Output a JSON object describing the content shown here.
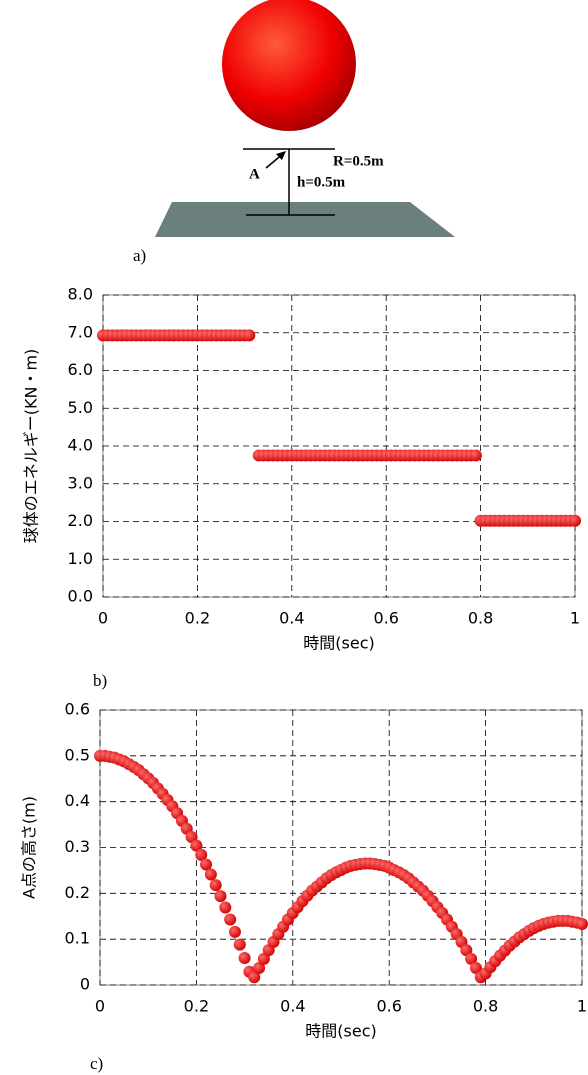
{
  "diagram": {
    "radius_label": "R=0.5m",
    "point_label": "A",
    "height_label": "h=0.5m",
    "caption": "a)"
  },
  "chart_data": [
    {
      "type": "scatter",
      "caption": "b)",
      "xlabel": "時間(sec)",
      "ylabel": "球体のエネルギー(KN・m)",
      "color": "#ff0000",
      "grid": true,
      "xlim": [
        0,
        1
      ],
      "xticks": [
        0,
        0.2,
        0.4,
        0.6,
        0.8,
        1
      ],
      "ylim": [
        0,
        8
      ],
      "yticks": [
        {
          "value": 0,
          "label": "0.0"
        },
        {
          "value": 1,
          "label": "1.0"
        },
        {
          "value": 2,
          "label": "2.0"
        },
        {
          "value": 3,
          "label": "3.0"
        },
        {
          "value": 4,
          "label": "4.0"
        },
        {
          "value": 5,
          "label": "5.0"
        },
        {
          "value": 6,
          "label": "6.0"
        },
        {
          "value": 7,
          "label": "7.0"
        },
        {
          "value": 8,
          "label": "8.0"
        }
      ],
      "x": [
        0,
        0.01,
        0.02,
        0.03,
        0.04,
        0.05,
        0.06,
        0.07,
        0.08,
        0.09,
        0.1,
        0.11,
        0.12,
        0.13,
        0.14,
        0.15,
        0.16,
        0.17,
        0.18,
        0.19,
        0.2,
        0.21,
        0.22,
        0.23,
        0.24,
        0.25,
        0.26,
        0.27,
        0.28,
        0.29,
        0.3,
        0.31,
        0.33,
        0.34,
        0.35,
        0.36,
        0.37,
        0.38,
        0.39,
        0.4,
        0.41,
        0.42,
        0.43,
        0.44,
        0.45,
        0.46,
        0.47,
        0.48,
        0.49,
        0.5,
        0.51,
        0.52,
        0.53,
        0.54,
        0.55,
        0.56,
        0.57,
        0.58,
        0.59,
        0.6,
        0.61,
        0.62,
        0.63,
        0.64,
        0.65,
        0.66,
        0.67,
        0.68,
        0.69,
        0.7,
        0.71,
        0.72,
        0.73,
        0.74,
        0.75,
        0.76,
        0.77,
        0.78,
        0.79,
        0.8,
        0.81,
        0.82,
        0.83,
        0.84,
        0.85,
        0.86,
        0.87,
        0.88,
        0.89,
        0.9,
        0.91,
        0.92,
        0.93,
        0.94,
        0.95,
        0.96,
        0.97,
        0.98,
        0.99,
        1
      ],
      "values": [
        6.93,
        6.93,
        6.93,
        6.93,
        6.93,
        6.93,
        6.93,
        6.93,
        6.93,
        6.93,
        6.93,
        6.93,
        6.93,
        6.93,
        6.93,
        6.93,
        6.93,
        6.93,
        6.93,
        6.93,
        6.93,
        6.93,
        6.93,
        6.93,
        6.93,
        6.93,
        6.93,
        6.93,
        6.93,
        6.93,
        6.93,
        6.93,
        3.75,
        3.75,
        3.75,
        3.75,
        3.75,
        3.75,
        3.75,
        3.75,
        3.75,
        3.75,
        3.75,
        3.75,
        3.75,
        3.75,
        3.75,
        3.75,
        3.75,
        3.75,
        3.75,
        3.75,
        3.75,
        3.75,
        3.75,
        3.75,
        3.75,
        3.75,
        3.75,
        3.75,
        3.75,
        3.75,
        3.75,
        3.75,
        3.75,
        3.75,
        3.75,
        3.75,
        3.75,
        3.75,
        3.75,
        3.75,
        3.75,
        3.75,
        3.75,
        3.75,
        3.75,
        3.75,
        3.75,
        2.02,
        2.02,
        2.02,
        2.02,
        2.02,
        2.02,
        2.02,
        2.02,
        2.02,
        2.02,
        2.02,
        2.02,
        2.02,
        2.02,
        2.02,
        2.02,
        2.02,
        2.02,
        2.02,
        2.02,
        2.02
      ]
    },
    {
      "type": "scatter",
      "caption": "c)",
      "xlabel": "時間(sec)",
      "ylabel": "A点の高さ(m)",
      "color": "#ff0000",
      "grid": true,
      "xlim": [
        0,
        1
      ],
      "xticks": [
        0,
        0.2,
        0.4,
        0.6,
        0.8,
        1
      ],
      "ylim": [
        0,
        0.6
      ],
      "yticks": [
        0,
        0.1,
        0.2,
        0.3,
        0.4,
        0.5,
        0.6
      ],
      "x": [
        0,
        0.01,
        0.02,
        0.03,
        0.04,
        0.05,
        0.06,
        0.07,
        0.08,
        0.09,
        0.1,
        0.11,
        0.12,
        0.13,
        0.14,
        0.15,
        0.16,
        0.17,
        0.18,
        0.19,
        0.2,
        0.21,
        0.22,
        0.23,
        0.24,
        0.25,
        0.26,
        0.27,
        0.28,
        0.29,
        0.3,
        0.31,
        0.32,
        0.33,
        0.34,
        0.35,
        0.36,
        0.37,
        0.38,
        0.39,
        0.4,
        0.41,
        0.42,
        0.43,
        0.44,
        0.45,
        0.46,
        0.47,
        0.48,
        0.49,
        0.5,
        0.51,
        0.52,
        0.53,
        0.54,
        0.55,
        0.56,
        0.57,
        0.58,
        0.59,
        0.6,
        0.61,
        0.62,
        0.63,
        0.64,
        0.65,
        0.66,
        0.67,
        0.68,
        0.69,
        0.7,
        0.71,
        0.72,
        0.73,
        0.74,
        0.75,
        0.76,
        0.77,
        0.78,
        0.79,
        0.8,
        0.81,
        0.82,
        0.83,
        0.84,
        0.85,
        0.86,
        0.87,
        0.88,
        0.89,
        0.9,
        0.91,
        0.92,
        0.93,
        0.94,
        0.95,
        0.96,
        0.97,
        0.98,
        0.99,
        1
      ],
      "values": [
        0.5,
        0.5,
        0.498,
        0.496,
        0.492,
        0.488,
        0.482,
        0.476,
        0.469,
        0.46,
        0.451,
        0.441,
        0.429,
        0.417,
        0.404,
        0.39,
        0.375,
        0.358,
        0.341,
        0.323,
        0.304,
        0.284,
        0.263,
        0.241,
        0.218,
        0.194,
        0.169,
        0.143,
        0.116,
        0.088,
        0.059,
        0.029,
        0.017,
        0.037,
        0.057,
        0.076,
        0.094,
        0.111,
        0.127,
        0.143,
        0.157,
        0.17,
        0.183,
        0.195,
        0.206,
        0.215,
        0.224,
        0.233,
        0.24,
        0.246,
        0.251,
        0.256,
        0.26,
        0.262,
        0.264,
        0.265,
        0.265,
        0.264,
        0.262,
        0.26,
        0.256,
        0.251,
        0.246,
        0.24,
        0.233,
        0.224,
        0.215,
        0.206,
        0.195,
        0.183,
        0.17,
        0.157,
        0.143,
        0.127,
        0.111,
        0.094,
        0.076,
        0.057,
        0.037,
        0.017,
        0.025,
        0.039,
        0.052,
        0.064,
        0.075,
        0.086,
        0.095,
        0.104,
        0.111,
        0.118,
        0.124,
        0.129,
        0.133,
        0.136,
        0.138,
        0.14,
        0.14,
        0.14,
        0.138,
        0.136,
        0.133
      ]
    }
  ]
}
